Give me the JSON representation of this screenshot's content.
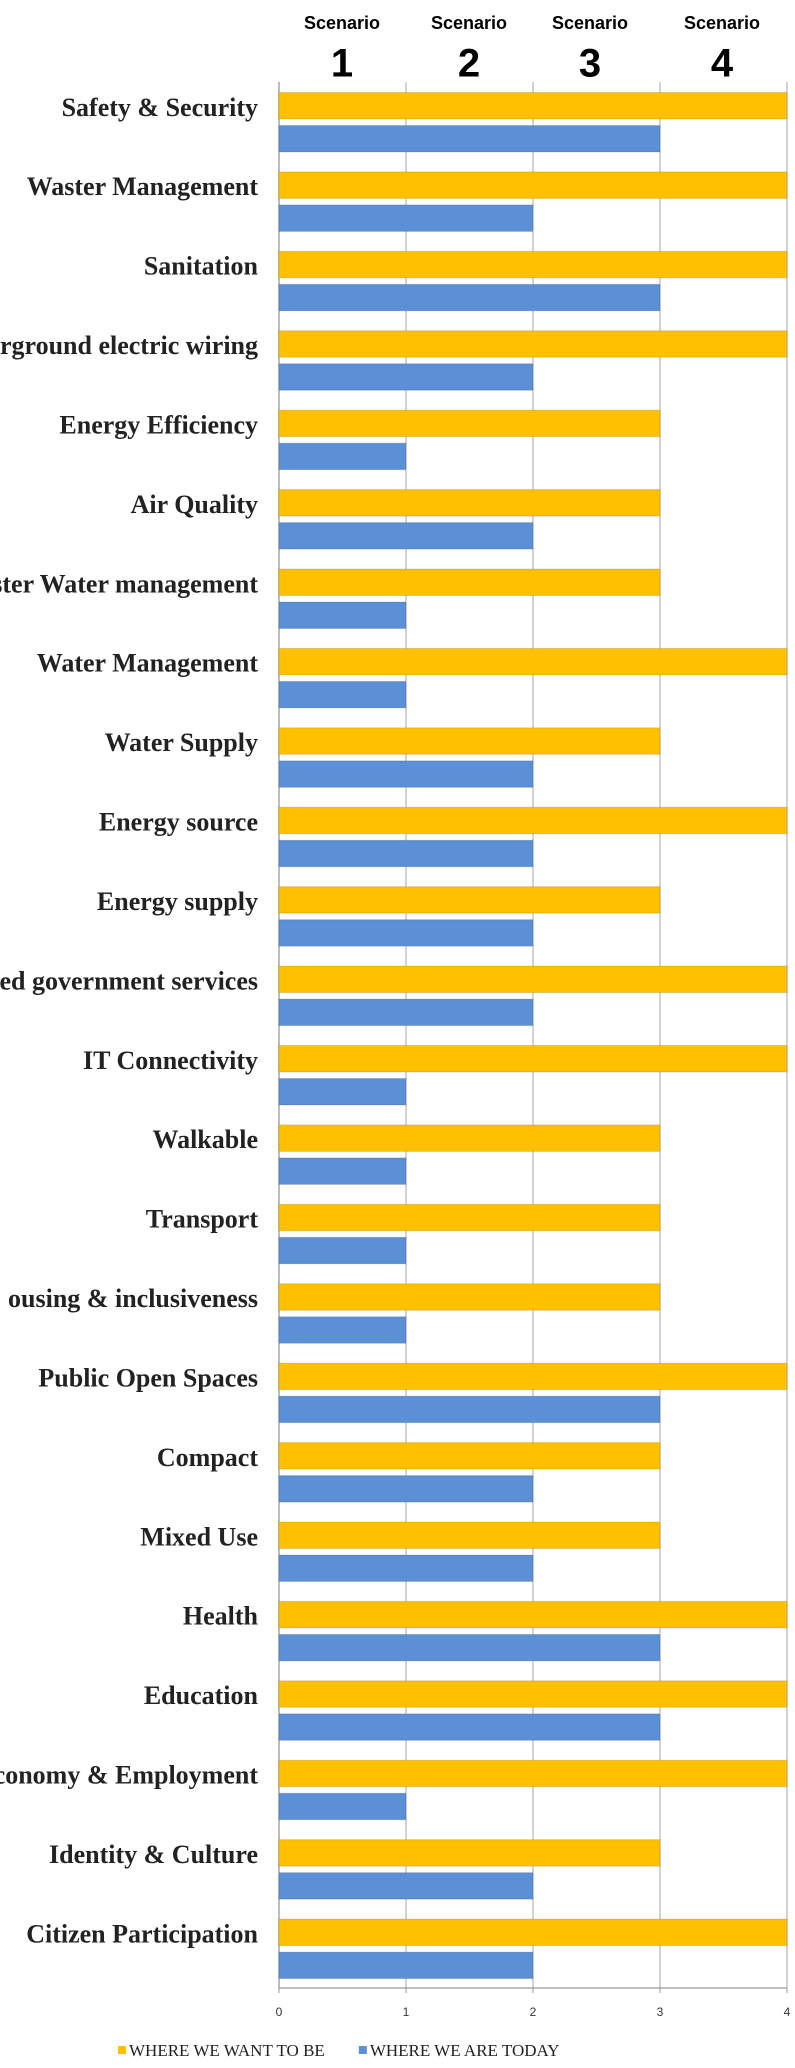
{
  "chart_data": {
    "type": "bar",
    "orientation": "horizontal",
    "scenarios": [
      {
        "label": "Scenario",
        "number": "1"
      },
      {
        "label": "Scenario",
        "number": "2"
      },
      {
        "label": "Scenario",
        "number": "3"
      },
      {
        "label": "Scenario",
        "number": "4"
      }
    ],
    "categories": [
      "Safety & Security",
      "Waster Management",
      "Sanitation",
      "erground electric wiring",
      "Energy Efficiency",
      "Air Quality",
      "ster Water management",
      "Water Management",
      "Water Supply",
      "Energy source",
      "Energy supply",
      "ed government services",
      "IT Connectivity",
      "Walkable",
      "Transport",
      "ousing & inclusiveness",
      "Public Open Spaces",
      "Compact",
      "Mixed Use",
      "Health",
      "Education",
      "conomy & Employment",
      "Identity & Culture",
      "Citizen Participation"
    ],
    "series": [
      {
        "name": "WHERE WE WANT TO BE",
        "color": "#ffc000",
        "values": [
          4,
          4,
          4,
          4,
          3,
          3,
          3,
          4,
          3,
          4,
          3,
          4,
          4,
          3,
          3,
          3,
          4,
          3,
          3,
          4,
          4,
          4,
          3,
          4
        ]
      },
      {
        "name": "WHERE WE ARE TODAY",
        "color": "#5b8fd6",
        "values": [
          3,
          2,
          3,
          2,
          1,
          2,
          1,
          1,
          2,
          2,
          2,
          2,
          1,
          1,
          1,
          1,
          3,
          2,
          2,
          3,
          3,
          1,
          2,
          2
        ]
      }
    ],
    "xlim": [
      0,
      4
    ],
    "xticks": [
      0,
      1,
      2,
      3,
      4
    ],
    "grid": true,
    "legend": "bottom"
  }
}
